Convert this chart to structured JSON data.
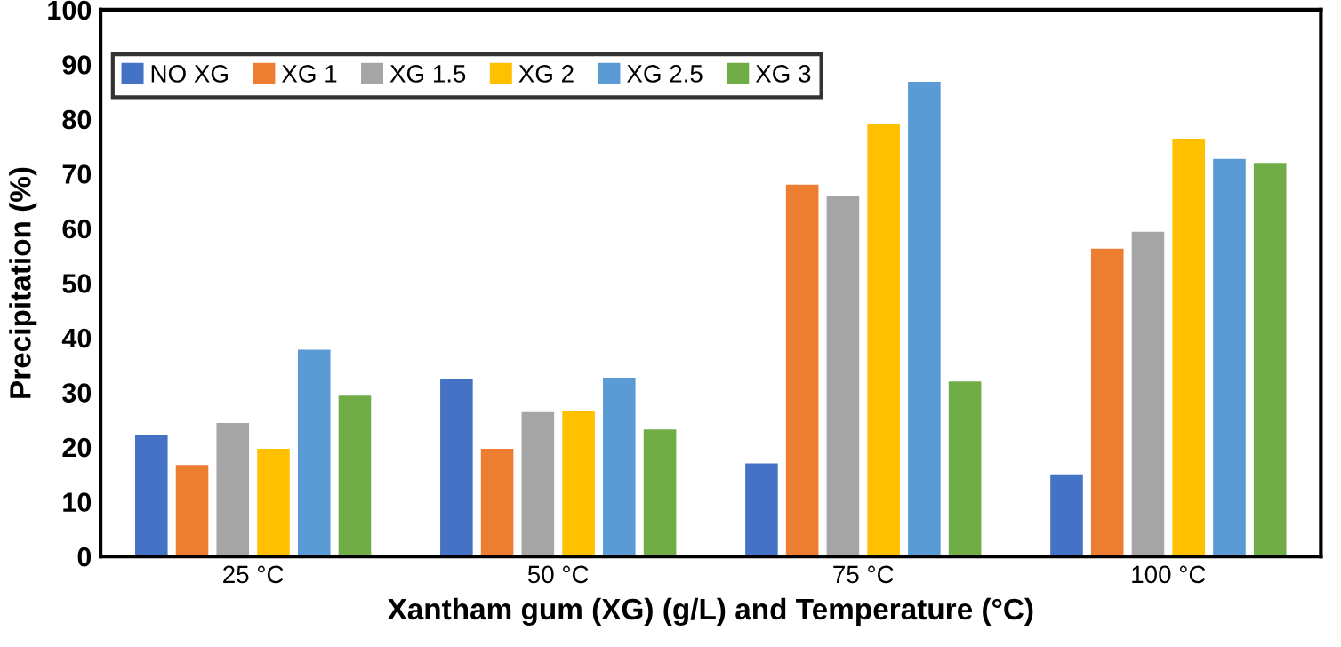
{
  "chart_data": {
    "type": "bar",
    "xlabel": "Xantham gum (XG) (g/L) and Temperature (°C)",
    "ylabel": "Precipitation (%)",
    "categories": [
      "25 °C",
      "50 °C",
      "75 °C",
      "100 °C"
    ],
    "series": [
      {
        "name": "NO XG",
        "color": "#4472c4",
        "values": [
          22.3,
          32.5,
          17,
          15
        ]
      },
      {
        "name": "XG 1",
        "color": "#ed7d31",
        "values": [
          16.7,
          19.7,
          68,
          56.3
        ]
      },
      {
        "name": "XG 1.5",
        "color": "#a5a5a5",
        "values": [
          24.4,
          26.4,
          66,
          59.4
        ]
      },
      {
        "name": "XG 2",
        "color": "#ffc000",
        "values": [
          19.7,
          26.5,
          79,
          76.4
        ]
      },
      {
        "name": "XG 2.5",
        "color": "#5b9bd5",
        "values": [
          37.8,
          32.7,
          86.8,
          72.7
        ]
      },
      {
        "name": "XG 3",
        "color": "#70ad47",
        "values": [
          29.4,
          23.2,
          32,
          72
        ]
      }
    ],
    "ylim": [
      0,
      100
    ],
    "yticks": [
      0,
      10,
      20,
      30,
      40,
      50,
      60,
      70,
      80,
      90,
      100
    ],
    "grid": false,
    "legend": "top left"
  }
}
